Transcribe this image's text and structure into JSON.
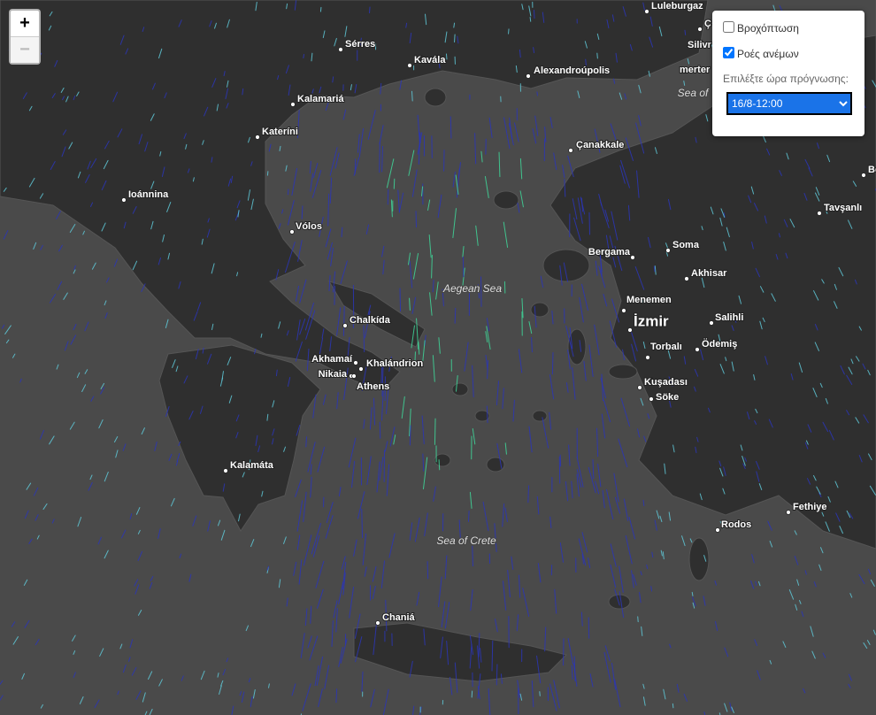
{
  "zoom": {
    "in": "+",
    "out": "−"
  },
  "layers": [
    {
      "label": "Βροχόπτωση",
      "checked": false
    },
    {
      "label": "Ροές ανέμων",
      "checked": true
    }
  ],
  "forecast": {
    "prompt": "Επιλέξτε ώρα πρόγνωσης:",
    "selected": "16/8-12:00"
  },
  "places": [
    "Luleburgaz",
    "Ç",
    "Silivr",
    "merter",
    "Sérres",
    "Kavála",
    "Alexandroúpolis",
    "Kalamariá",
    "Kateríni",
    "Çanakkale",
    "Ioánnina",
    "Be",
    "Tavşanlı",
    "Vólos",
    "Bergama",
    "Soma",
    "Akhisar",
    "Menemen",
    "İzmir",
    "Salihli",
    "Chalkída",
    "Torbalı",
    "Ödemiş",
    "Akhamaí",
    "Khalándrion",
    "Nikaia",
    "Athens",
    "Kuşadası",
    "Söke",
    "Kalamáta",
    "Fethiye",
    "Rodos",
    "Chaniá"
  ],
  "seas": [
    "Sea of",
    "Aegean Sea",
    "Sea of Crete"
  ]
}
